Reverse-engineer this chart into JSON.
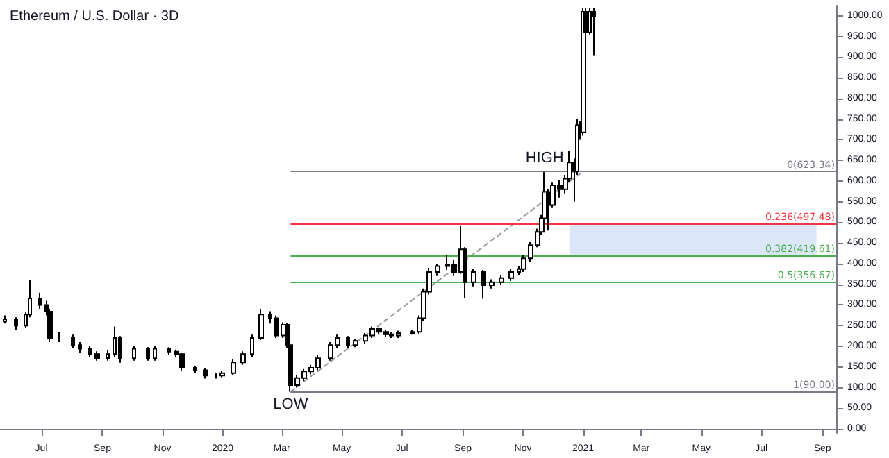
{
  "chart_data": {
    "type": "candlestick",
    "title": "Ethereum / U.S. Dollar · 3D",
    "xlim": [
      "2019-05-20",
      "2021-09-15"
    ],
    "xticks": [
      {
        "value": "2019-07-01",
        "label": "Jul"
      },
      {
        "value": "2019-09-01",
        "label": "Sep"
      },
      {
        "value": "2019-11-01",
        "label": "Nov"
      },
      {
        "value": "2020-01-01",
        "label": "2020"
      },
      {
        "value": "2020-03-01",
        "label": "Mar"
      },
      {
        "value": "2020-05-01",
        "label": "May"
      },
      {
        "value": "2020-07-01",
        "label": "Jul"
      },
      {
        "value": "2020-09-01",
        "label": "Sep"
      },
      {
        "value": "2020-11-01",
        "label": "Nov"
      },
      {
        "value": "2021-01-01",
        "label": "2021"
      },
      {
        "value": "2021-03-01",
        "label": "Mar"
      },
      {
        "value": "2021-05-01",
        "label": "May"
      },
      {
        "value": "2021-07-01",
        "label": "Jul"
      },
      {
        "value": "2021-09-01",
        "label": "Sep"
      }
    ],
    "ylim": [
      -10,
      1025
    ],
    "yticks": [
      {
        "value": 0,
        "label": "0.00"
      },
      {
        "value": 50,
        "label": "50.00"
      },
      {
        "value": 100,
        "label": "100.00"
      },
      {
        "value": 150,
        "label": "150.00"
      },
      {
        "value": 200,
        "label": "200.00"
      },
      {
        "value": 250,
        "label": "250.00"
      },
      {
        "value": 300,
        "label": "300.00"
      },
      {
        "value": 350,
        "label": "350.00"
      },
      {
        "value": 400,
        "label": "400.00"
      },
      {
        "value": 450,
        "label": "450.00"
      },
      {
        "value": 500,
        "label": "500.00"
      },
      {
        "value": 550,
        "label": "550.00"
      },
      {
        "value": 600,
        "label": "600.00"
      },
      {
        "value": 650,
        "label": "650.00"
      },
      {
        "value": 700,
        "label": "700.00"
      },
      {
        "value": 750,
        "label": "750.00"
      },
      {
        "value": 800,
        "label": "800.00"
      },
      {
        "value": 850,
        "label": "850.00"
      },
      {
        "value": 900,
        "label": "900.00"
      },
      {
        "value": 950,
        "label": "950.00"
      },
      {
        "value": 1000,
        "label": "1000.00"
      }
    ],
    "series": [
      {
        "type": "candlestick",
        "color": "#000000",
        "x": [
          "2019-05-25",
          "2019-06-05",
          "2019-06-15",
          "2019-06-19",
          "2019-06-29",
          "2019-07-06",
          "2019-07-10",
          "2019-07-19",
          "2019-08-02",
          "2019-08-09",
          "2019-08-19",
          "2019-08-27",
          "2019-09-06",
          "2019-09-13",
          "2019-09-19",
          "2019-10-03",
          "2019-10-17",
          "2019-10-24",
          "2019-11-07",
          "2019-11-15",
          "2019-11-21",
          "2019-12-04",
          "2019-12-15",
          "2019-12-25",
          "2020-01-01",
          "2020-01-12",
          "2020-01-22",
          "2020-01-31",
          "2020-02-09",
          "2020-02-18",
          "2020-02-25",
          "2020-03-03",
          "2020-03-07",
          "2020-03-10",
          "2020-03-17",
          "2020-03-24",
          "2020-03-31",
          "2020-04-07",
          "2020-04-20",
          "2020-04-27",
          "2020-05-07",
          "2020-05-15",
          "2020-05-25",
          "2020-06-01",
          "2020-06-08",
          "2020-06-15",
          "2020-06-21",
          "2020-06-28",
          "2020-07-12",
          "2020-07-19",
          "2020-07-23",
          "2020-07-29",
          "2020-08-06",
          "2020-08-16",
          "2020-08-23",
          "2020-08-30",
          "2020-09-03",
          "2020-09-12",
          "2020-09-22",
          "2020-09-30",
          "2020-10-10",
          "2020-10-20",
          "2020-10-28",
          "2020-11-02",
          "2020-11-09",
          "2020-11-16",
          "2020-11-20",
          "2020-11-23",
          "2020-11-27",
          "2020-12-01",
          "2020-12-08",
          "2020-12-14",
          "2020-12-18",
          "2020-12-23",
          "2020-12-26",
          "2020-12-29",
          "2021-01-01",
          "2021-01-04",
          "2021-01-08",
          "2021-01-12"
        ],
        "ohlc": [
          [
            260,
            275,
            255,
            265
          ],
          [
            265,
            270,
            240,
            250
          ],
          [
            250,
            282,
            245,
            277
          ],
          [
            277,
            361,
            270,
            316
          ],
          [
            316,
            330,
            290,
            300
          ],
          [
            300,
            310,
            275,
            284
          ],
          [
            284,
            290,
            210,
            220
          ],
          [
            220,
            235,
            210,
            220
          ],
          [
            220,
            228,
            195,
            203
          ],
          [
            203,
            210,
            185,
            194
          ],
          [
            194,
            200,
            175,
            181
          ],
          [
            181,
            188,
            165,
            171
          ],
          [
            171,
            190,
            165,
            181
          ],
          [
            181,
            248,
            175,
            220
          ],
          [
            220,
            225,
            160,
            171
          ],
          [
            171,
            200,
            165,
            194
          ],
          [
            194,
            198,
            165,
            171
          ],
          [
            171,
            200,
            165,
            194
          ],
          [
            194,
            198,
            180,
            187
          ],
          [
            187,
            192,
            175,
            181
          ],
          [
            181,
            185,
            140,
            148
          ],
          [
            148,
            152,
            135,
            142
          ],
          [
            142,
            148,
            122,
            129
          ],
          [
            129,
            136,
            122,
            129
          ],
          [
            129,
            140,
            125,
            135
          ],
          [
            135,
            168,
            130,
            161
          ],
          [
            161,
            188,
            155,
            181
          ],
          [
            181,
            228,
            175,
            220
          ],
          [
            220,
            290,
            215,
            277
          ],
          [
            277,
            285,
            255,
            268
          ],
          [
            268,
            275,
            220,
            226
          ],
          [
            226,
            258,
            220,
            252
          ],
          [
            252,
            256,
            195,
            203
          ],
          [
            203,
            210,
            90,
            106
          ],
          [
            106,
            130,
            100,
            123
          ],
          [
            123,
            145,
            115,
            139
          ],
          [
            139,
            155,
            132,
            148
          ],
          [
            148,
            178,
            142,
            171
          ],
          [
            171,
            210,
            165,
            203
          ],
          [
            203,
            228,
            195,
            220
          ],
          [
            220,
            225,
            195,
            203
          ],
          [
            203,
            218,
            198,
            213
          ],
          [
            213,
            232,
            205,
            226
          ],
          [
            226,
            248,
            220,
            242
          ],
          [
            242,
            246,
            228,
            235
          ],
          [
            235,
            240,
            222,
            229
          ],
          [
            229,
            235,
            220,
            226
          ],
          [
            226,
            238,
            220,
            232
          ],
          [
            232,
            240,
            228,
            235
          ],
          [
            235,
            275,
            230,
            268
          ],
          [
            268,
            340,
            262,
            332
          ],
          [
            332,
            390,
            325,
            380
          ],
          [
            380,
            400,
            370,
            394
          ],
          [
            394,
            420,
            385,
            397
          ],
          [
            397,
            410,
            370,
            380
          ],
          [
            380,
            493,
            375,
            435
          ],
          [
            435,
            440,
            316,
            355
          ],
          [
            355,
            388,
            345,
            380
          ],
          [
            380,
            385,
            315,
            348
          ],
          [
            348,
            362,
            340,
            355
          ],
          [
            355,
            372,
            348,
            365
          ],
          [
            365,
            388,
            358,
            380
          ],
          [
            380,
            395,
            372,
            387
          ],
          [
            387,
            420,
            380,
            413
          ],
          [
            413,
            452,
            405,
            445
          ],
          [
            445,
            485,
            440,
            477
          ],
          [
            477,
            518,
            470,
            510
          ],
          [
            510,
            622,
            505,
            574
          ],
          [
            574,
            580,
            480,
            542
          ],
          [
            542,
            598,
            535,
            590
          ],
          [
            590,
            602,
            560,
            580
          ],
          [
            580,
            615,
            570,
            606
          ],
          [
            606,
            673,
            598,
            645
          ],
          [
            645,
            655,
            550,
            623
          ],
          [
            623,
            750,
            615,
            735
          ],
          [
            735,
            745,
            700,
            718
          ],
          [
            718,
            1020,
            710,
            1010
          ],
          [
            1010,
            1020,
            900,
            960
          ],
          [
            960,
            1020,
            955,
            1010
          ],
          [
            1010,
            1020,
            905,
            1000
          ]
        ]
      },
      {
        "type": "line",
        "color": "#9598a1",
        "line_style": "dashed",
        "x": [
          "2020-03-10",
          "2021-01-01"
        ],
        "values": [
          90,
          623
        ]
      }
    ],
    "ref_lines": [
      {
        "axis": "y",
        "value": 623.34,
        "label": "0(623.34)",
        "color": "#787b86"
      },
      {
        "axis": "y",
        "value": 497.48,
        "label": "0.236(497.48)",
        "color": "#f23645"
      },
      {
        "axis": "y",
        "value": 419.61,
        "label": "0.382(419.61)",
        "color": "#4caf50"
      },
      {
        "axis": "y",
        "value": 356.67,
        "label": "0.5(356.67)",
        "color": "#4caf50"
      },
      {
        "axis": "y",
        "value": 90,
        "label": "1(90.00)",
        "color": "#787b86"
      }
    ],
    "bands": [
      {
        "axis": "y",
        "from": 419.61,
        "to": 497.48,
        "color": "#dbe6f8"
      }
    ],
    "annotations": [
      {
        "text": "LOW",
        "x": "2020-03-10",
        "y": 90
      },
      {
        "text": "HIGH",
        "x": "2020-11-23",
        "y": 623.34
      }
    ]
  }
}
